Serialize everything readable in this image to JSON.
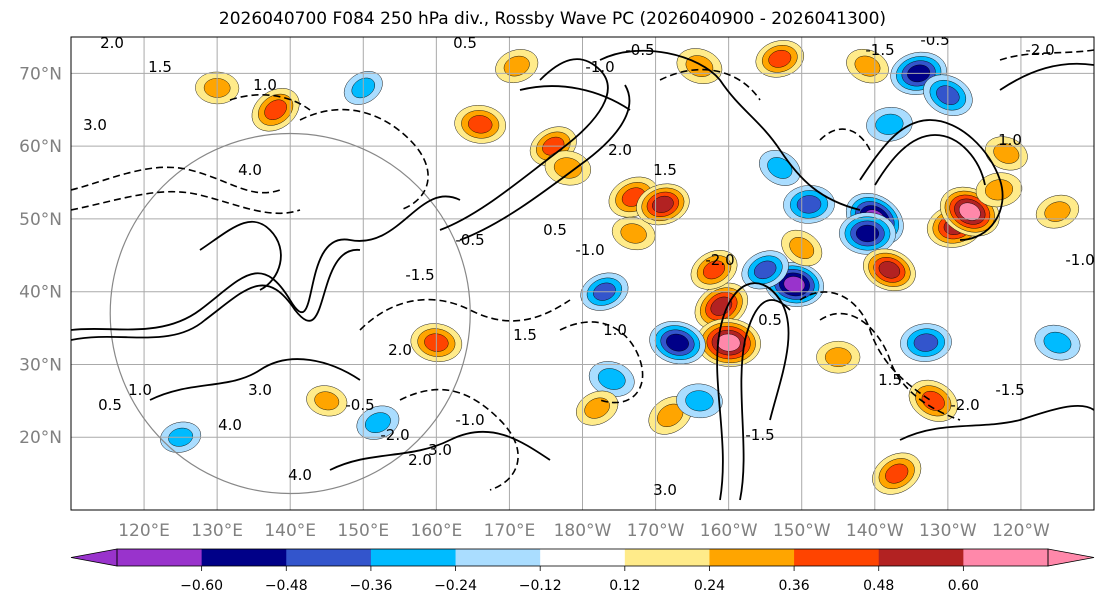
{
  "chart_data": {
    "type": "heatmap",
    "title": "2026040700 F084 250 hPa div., Rossby Wave PC (2026040900 - 2026041300)",
    "map": {
      "lon_range": [
        110,
        250
      ],
      "lat_range": [
        10,
        75
      ],
      "x_ticks": [
        {
          "lon": 120,
          "label": "120°E"
        },
        {
          "lon": 130,
          "label": "130°E"
        },
        {
          "lon": 140,
          "label": "140°E"
        },
        {
          "lon": 150,
          "label": "150°E"
        },
        {
          "lon": 160,
          "label": "160°E"
        },
        {
          "lon": 170,
          "label": "170°E"
        },
        {
          "lon": 180,
          "label": "180°W"
        },
        {
          "lon": 190,
          "label": "170°W"
        },
        {
          "lon": 200,
          "label": "160°W"
        },
        {
          "lon": 210,
          "label": "150°W"
        },
        {
          "lon": 220,
          "label": "140°W"
        },
        {
          "lon": 230,
          "label": "130°W"
        },
        {
          "lon": 240,
          "label": "120°W"
        }
      ],
      "y_ticks": [
        {
          "lat": 20,
          "label": "20°N"
        },
        {
          "lat": 30,
          "label": "30°N"
        },
        {
          "lat": 40,
          "label": "40°N"
        },
        {
          "lat": 50,
          "label": "50°N"
        },
        {
          "lat": 60,
          "label": "60°N"
        },
        {
          "lat": 70,
          "label": "70°N"
        }
      ],
      "grid": true
    },
    "colorbar": {
      "levels": [
        -0.72,
        -0.6,
        -0.48,
        -0.36,
        -0.24,
        -0.12,
        0.12,
        0.24,
        0.36,
        0.48,
        0.6,
        0.72
      ],
      "colors": [
        "#9933cc",
        "#000088",
        "#3355cc",
        "#00bbff",
        "#aaddff",
        "#ffffff",
        "#ffeb8a",
        "#ffa500",
        "#ff4400",
        "#b22222",
        "#ff88aa"
      ],
      "tick_labels": [
        "-0.60",
        "-0.48",
        "-0.36",
        "-0.24",
        "-0.12",
        "0.12",
        "0.24",
        "0.36",
        "0.48",
        "0.60"
      ],
      "tick_values": [
        -0.6,
        -0.48,
        -0.36,
        -0.24,
        -0.12,
        0.12,
        0.24,
        0.36,
        0.48,
        0.6
      ],
      "extend": "both"
    },
    "divergence_blobs": [
      {
        "lon": 138,
        "lat": 65,
        "value": 0.45
      },
      {
        "lon": 130,
        "lat": 68,
        "value": 0.3
      },
      {
        "lon": 150,
        "lat": 68,
        "value": -0.25
      },
      {
        "lon": 166,
        "lat": 63,
        "value": 0.45
      },
      {
        "lon": 176,
        "lat": 60,
        "value": 0.4
      },
      {
        "lon": 178,
        "lat": 57,
        "value": 0.35
      },
      {
        "lon": 187,
        "lat": 53,
        "value": 0.45
      },
      {
        "lon": 187,
        "lat": 48,
        "value": 0.3
      },
      {
        "lon": 171,
        "lat": 71,
        "value": 0.3
      },
      {
        "lon": 196,
        "lat": 71,
        "value": 0.35
      },
      {
        "lon": 207,
        "lat": 72,
        "value": 0.4
      },
      {
        "lon": 219,
        "lat": 71,
        "value": 0.3
      },
      {
        "lon": 226,
        "lat": 70,
        "value": -0.55
      },
      {
        "lon": 230,
        "lat": 67,
        "value": -0.45
      },
      {
        "lon": 222,
        "lat": 63,
        "value": -0.35
      },
      {
        "lon": 207,
        "lat": 57,
        "value": -0.3
      },
      {
        "lon": 211,
        "lat": 52,
        "value": -0.45
      },
      {
        "lon": 220,
        "lat": 50,
        "value": -0.65
      },
      {
        "lon": 219,
        "lat": 48,
        "value": -0.55
      },
      {
        "lon": 199,
        "lat": 38,
        "value": 0.55
      },
      {
        "lon": 200,
        "lat": 33,
        "value": 0.7
      },
      {
        "lon": 198,
        "lat": 43,
        "value": 0.4
      },
      {
        "lon": 209,
        "lat": 41,
        "value": -0.6
      },
      {
        "lon": 205,
        "lat": 43,
        "value": -0.4
      },
      {
        "lon": 193,
        "lat": 33,
        "value": -0.55
      },
      {
        "lon": 183,
        "lat": 40,
        "value": -0.4
      },
      {
        "lon": 184,
        "lat": 28,
        "value": -0.35
      },
      {
        "lon": 191,
        "lat": 52,
        "value": 0.5
      },
      {
        "lon": 222,
        "lat": 43,
        "value": 0.5
      },
      {
        "lon": 231,
        "lat": 49,
        "value": 0.55
      },
      {
        "lon": 233,
        "lat": 51,
        "value": 0.65
      },
      {
        "lon": 237,
        "lat": 54,
        "value": 0.35
      },
      {
        "lon": 228,
        "lat": 25,
        "value": 0.45
      },
      {
        "lon": 227,
        "lat": 33,
        "value": -0.45
      },
      {
        "lon": 210,
        "lat": 46,
        "value": 0.3
      },
      {
        "lon": 215,
        "lat": 31,
        "value": 0.3
      },
      {
        "lon": 192,
        "lat": 23,
        "value": 0.35
      },
      {
        "lon": 196,
        "lat": 25,
        "value": -0.35
      },
      {
        "lon": 223,
        "lat": 15,
        "value": 0.45
      },
      {
        "lon": 160,
        "lat": 33,
        "value": 0.45
      },
      {
        "lon": 182,
        "lat": 24,
        "value": 0.3
      },
      {
        "lon": 145,
        "lat": 25,
        "value": 0.25
      },
      {
        "lon": 152,
        "lat": 22,
        "value": -0.3
      },
      {
        "lon": 245,
        "lat": 33,
        "value": -0.35
      },
      {
        "lon": 245,
        "lat": 51,
        "value": 0.3
      },
      {
        "lon": 238,
        "lat": 59,
        "value": 0.3
      },
      {
        "lon": 125,
        "lat": 20,
        "value": -0.25
      }
    ],
    "contour_labels": [
      "2.0",
      "1.5",
      "1.0",
      "0.5",
      "-0.5",
      "-1.0",
      "-1.5",
      "-2.0",
      "3.0",
      "4.0"
    ]
  }
}
